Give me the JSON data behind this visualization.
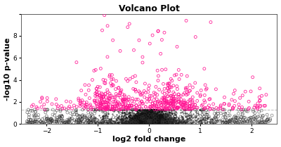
{
  "title": "Volcano Plot",
  "xlabel": "log2 fold change",
  "ylabel": "-log10 p-value",
  "xlim": [
    -2.5,
    2.5
  ],
  "ylim": [
    0,
    10
  ],
  "yticks": [
    0,
    2,
    4,
    6,
    8,
    10
  ],
  "ytick_labels": [
    "0",
    "2",
    "4",
    "6",
    "8",
    ""
  ],
  "xticks": [
    -2,
    -1,
    0,
    1,
    2
  ],
  "significance_line_y": 1.3,
  "seed": 42,
  "nonsig_color": "#111111",
  "sig_color": "#FF1493",
  "dot_size_nonsig": 3,
  "dot_size_sig": 8,
  "line_color": "#bbbbbb",
  "line_style": "--",
  "title_fontsize": 9,
  "label_fontsize": 8
}
